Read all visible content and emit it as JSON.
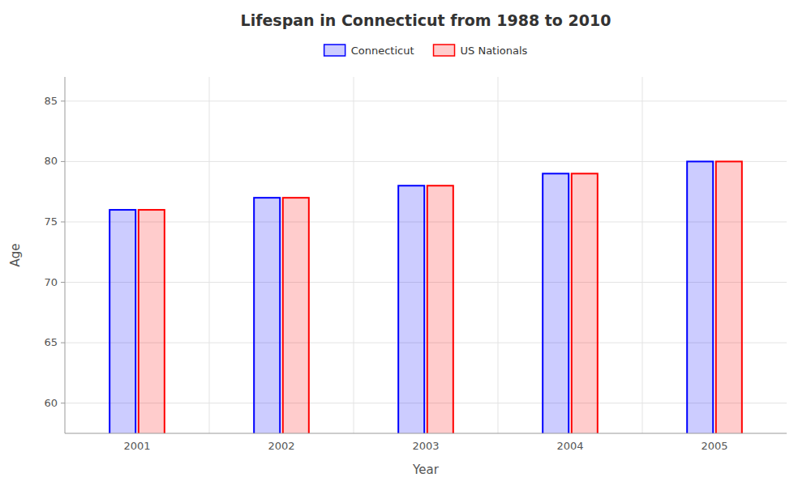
{
  "chart_data": {
    "type": "bar",
    "title": "Lifespan in Connecticut from 1988 to 2010",
    "xlabel": "Year",
    "ylabel": "Age",
    "categories": [
      "2001",
      "2002",
      "2003",
      "2004",
      "2005"
    ],
    "series": [
      {
        "name": "Connecticut",
        "color": "#0000FF",
        "values": [
          76,
          77,
          78,
          79,
          80
        ]
      },
      {
        "name": "US Nationals",
        "color": "#FF0000",
        "values": [
          76,
          77,
          78,
          79,
          80
        ]
      }
    ],
    "ylim": [
      57.5,
      87
    ],
    "yticks": [
      60,
      65,
      70,
      75,
      80,
      85
    ],
    "grid": true,
    "legend": "top"
  }
}
